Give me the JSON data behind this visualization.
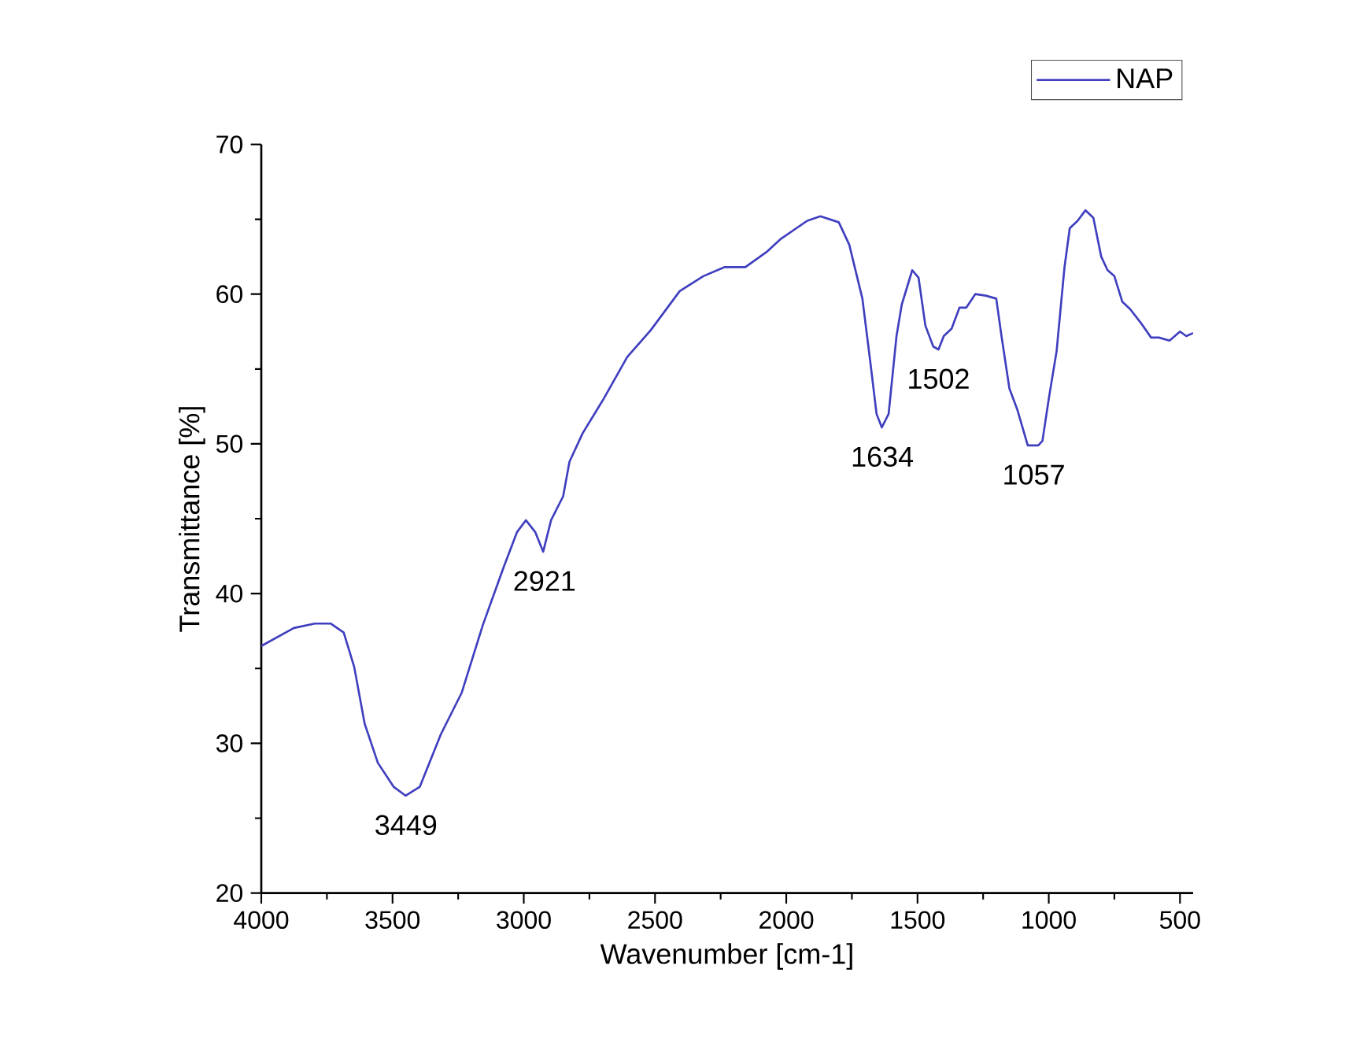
{
  "chart_data": {
    "type": "line",
    "xlabel": "Wavenumber [cm-1]",
    "ylabel": "Transmittance [%]",
    "xlim": [
      4000,
      450
    ],
    "ylim": [
      20,
      70
    ],
    "xticks": [
      4000,
      3500,
      3000,
      2500,
      2000,
      1500,
      1000,
      500
    ],
    "yticks": [
      20,
      30,
      40,
      50,
      60,
      70
    ],
    "legend": "top right",
    "grid": false,
    "series": [
      {
        "name": "NAP",
        "color": "#3f3fbf",
        "x": [
          4000,
          3876,
          3796,
          3736,
          3686,
          3646,
          3606,
          3556,
          3496,
          3450,
          3396,
          3316,
          3236,
          3156,
          3076,
          3026,
          2992,
          2956,
          2926,
          2896,
          2850,
          2826,
          2776,
          2696,
          2606,
          2516,
          2406,
          2316,
          2236,
          2156,
          2076,
          2020,
          1920,
          1870,
          1800,
          1760,
          1710,
          1680,
          1656,
          1636,
          1610,
          1580,
          1560,
          1520,
          1496,
          1470,
          1440,
          1420,
          1400,
          1370,
          1340,
          1314,
          1280,
          1240,
          1200,
          1180,
          1150,
          1120,
          1080,
          1040,
          1024,
          1000,
          970,
          940,
          920,
          890,
          860,
          830,
          800,
          776,
          750,
          720,
          690,
          650,
          610,
          580,
          540,
          500,
          476,
          450
        ],
        "values": [
          36.5,
          37.7,
          38.0,
          38.0,
          37.4,
          35.1,
          31.3,
          28.7,
          27.1,
          26.5,
          27.1,
          30.6,
          33.4,
          37.9,
          41.8,
          44.1,
          44.9,
          44.1,
          42.8,
          44.9,
          46.5,
          48.8,
          50.7,
          53.0,
          55.8,
          57.6,
          60.2,
          61.2,
          61.8,
          61.8,
          62.8,
          63.7,
          64.9,
          65.2,
          64.8,
          63.3,
          59.7,
          55.5,
          52.0,
          51.1,
          52.0,
          57.2,
          59.3,
          61.6,
          61.1,
          57.9,
          56.5,
          56.3,
          57.2,
          57.7,
          59.1,
          59.1,
          60.0,
          59.9,
          59.7,
          57.2,
          53.7,
          52.3,
          49.9,
          49.9,
          50.2,
          53.0,
          56.2,
          61.8,
          64.4,
          64.9,
          65.6,
          65.1,
          62.5,
          61.6,
          61.2,
          59.5,
          59.0,
          58.1,
          57.1,
          57.1,
          56.9,
          57.5,
          57.2,
          57.4
        ]
      }
    ],
    "annotations": [
      {
        "text": "3449",
        "x": 3449,
        "y": 26.5
      },
      {
        "text": "2921",
        "x": 2921,
        "y": 42.8
      },
      {
        "text": "1634",
        "x": 1634,
        "y": 51.1
      },
      {
        "text": "1502",
        "x": 1420,
        "y": 56.3
      },
      {
        "text": "1057",
        "x": 1057,
        "y": 49.9
      }
    ]
  }
}
